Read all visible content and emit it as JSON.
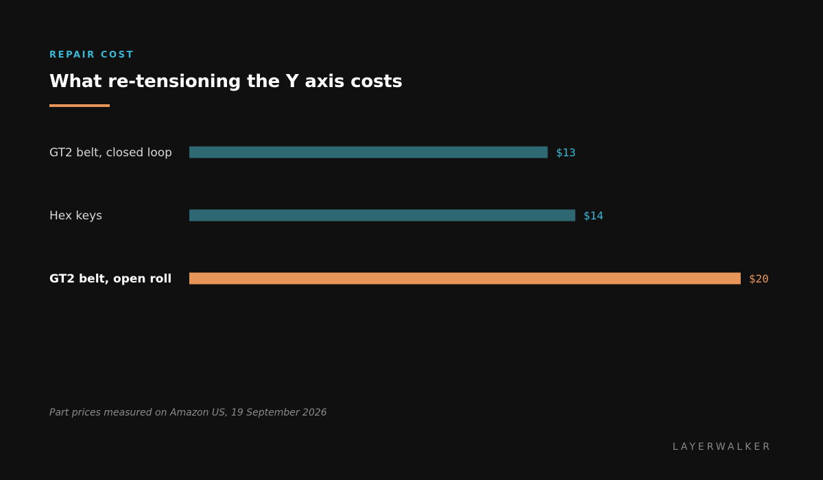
{
  "header": {
    "eyebrow": "REPAIR COST",
    "title": "What re-tensioning the Y axis costs"
  },
  "footer": {
    "note": "Part prices measured on Amazon US, 19 September 2026",
    "brand": "LAYERWALKER"
  },
  "colors": {
    "accent": "#3bb7d6",
    "highlight": "#e8955a",
    "bar_default": "#2e6872",
    "background": "#101010"
  },
  "chart_data": {
    "type": "bar",
    "orientation": "horizontal",
    "categories": [
      "GT2 belt, closed loop",
      "Hex keys",
      "GT2 belt, open roll"
    ],
    "values": [
      13,
      14,
      20
    ],
    "value_labels": [
      "$13",
      "$14",
      "$20"
    ],
    "highlight": "GT2 belt, open roll",
    "title": "What re-tensioning the Y axis costs",
    "xlabel": "",
    "ylabel": "",
    "xlim": [
      0,
      20
    ],
    "grid": false,
    "legend": "none"
  }
}
